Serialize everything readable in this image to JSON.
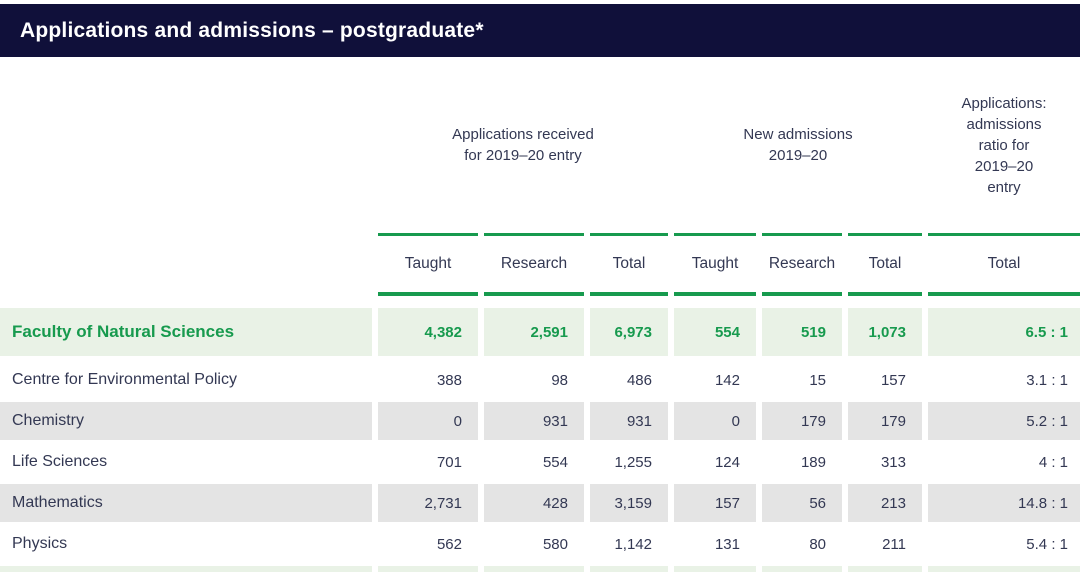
{
  "title": "Applications and admissions – postgraduate*",
  "colors": {
    "header_bg": "#10103a",
    "accent_green": "#179a4e",
    "faculty_row_bg": "#e9f2e6",
    "stripe_bg": "#e4e4e4",
    "text_dark": "#333853"
  },
  "table": {
    "group_headers": {
      "applications": [
        "Applications received",
        "for 2019–20 entry"
      ],
      "admissions": [
        "New admissions",
        "2019–20"
      ],
      "ratio": [
        "Applications:",
        "admissions",
        "ratio for",
        "2019–20",
        "entry"
      ]
    },
    "sub_headers": [
      "Taught",
      "Research",
      "Total",
      "Taught",
      "Research",
      "Total",
      "Total"
    ],
    "rows": [
      {
        "name": "Faculty of Natural Sciences",
        "values": [
          "4,382",
          "2,591",
          "6,973",
          "554",
          "519",
          "1,073",
          "6.5 : 1"
        ]
      },
      {
        "name": "Centre for Environmental Policy",
        "values": [
          "388",
          "98",
          "486",
          "142",
          "15",
          "157",
          "3.1 : 1"
        ]
      },
      {
        "name": "Chemistry",
        "values": [
          "0",
          "931",
          "931",
          "0",
          "179",
          "179",
          "5.2 : 1"
        ]
      },
      {
        "name": "Life Sciences",
        "values": [
          "701",
          "554",
          "1,255",
          "124",
          "189",
          "313",
          "4 : 1"
        ]
      },
      {
        "name": "Mathematics",
        "values": [
          "2,731",
          "428",
          "3,159",
          "157",
          "56",
          "213",
          "14.8 : 1"
        ]
      },
      {
        "name": "Physics",
        "values": [
          "562",
          "580",
          "1,142",
          "131",
          "80",
          "211",
          "5.4 : 1"
        ]
      }
    ]
  }
}
